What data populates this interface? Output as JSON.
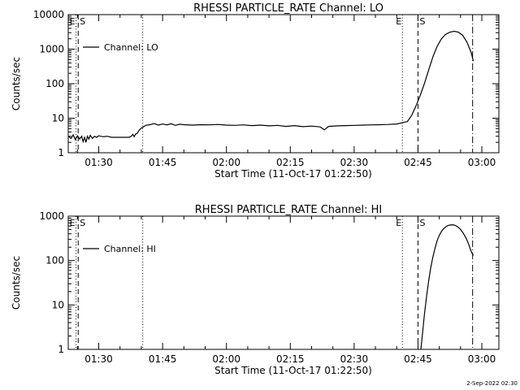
{
  "chart_data": [
    {
      "type": "line",
      "title": "RHESSI PARTICLE_RATE Channel: LO",
      "xlabel": "Start Time (11-Oct-17 01:22:50)",
      "ylabel": "Counts/sec",
      "xlim": [
        "01:22:50",
        "03:04:00"
      ],
      "ylim": [
        1,
        10000
      ],
      "yscale": "log",
      "x_ticks": [
        "01:30",
        "01:45",
        "02:00",
        "02:15",
        "02:30",
        "02:45",
        "03:00"
      ],
      "y_ticks": [
        "1",
        "10",
        "100",
        "1000",
        "10000"
      ],
      "legend": {
        "placement": "top-left",
        "entries": [
          "Channel: LO"
        ]
      },
      "markers": [
        {
          "label": "E",
          "time": "01:24:40",
          "style": "dotted"
        },
        {
          "label": "S",
          "time": "01:25:10",
          "style": "dashed"
        },
        {
          "label": "",
          "time": "01:40:20",
          "style": "dotted"
        },
        {
          "label": "E",
          "time": "02:41:20",
          "style": "dotted"
        },
        {
          "label": "S",
          "time": "02:45:00",
          "style": "dashed"
        },
        {
          "label": "",
          "time": "02:57:50",
          "style": "dashdot"
        }
      ],
      "series": [
        {
          "name": "Channel: LO",
          "points": [
            [
              "01:22:50",
              3
            ],
            [
              "01:23:30",
              2.6
            ],
            [
              "01:24:00",
              3.3
            ],
            [
              "01:24:30",
              2.4
            ],
            [
              "01:25:00",
              3.1
            ],
            [
              "01:25:30",
              2.5
            ],
            [
              "01:26:00",
              3.0
            ],
            [
              "01:26:20",
              2.1
            ],
            [
              "01:26:40",
              2.8
            ],
            [
              "01:27:00",
              2.0
            ],
            [
              "01:27:20",
              3.0
            ],
            [
              "01:27:40",
              2.5
            ],
            [
              "01:28:00",
              3.2
            ],
            [
              "01:28:30",
              2.6
            ],
            [
              "01:29:00",
              3.0
            ],
            [
              "01:29:30",
              2.8
            ],
            [
              "01:30:00",
              3.1
            ],
            [
              "01:31:00",
              2.9
            ],
            [
              "01:32:00",
              3.0
            ],
            [
              "01:33:00",
              2.8
            ],
            [
              "01:34:00",
              2.8
            ],
            [
              "01:35:00",
              2.8
            ],
            [
              "01:36:00",
              2.8
            ],
            [
              "01:37:00",
              2.8
            ],
            [
              "01:37:30",
              2.9
            ],
            [
              "01:38:00",
              3.4
            ],
            [
              "01:38:20",
              2.9
            ],
            [
              "01:38:40",
              3.5
            ],
            [
              "01:39:00",
              3.6
            ],
            [
              "01:39:30",
              4.5
            ],
            [
              "01:40:00",
              5.2
            ],
            [
              "01:40:30",
              5.6
            ],
            [
              "01:41:00",
              6.2
            ],
            [
              "01:42:00",
              6.5
            ],
            [
              "01:43:00",
              7.0
            ],
            [
              "01:44:00",
              6.3
            ],
            [
              "01:45:00",
              6.8
            ],
            [
              "01:46:00",
              6.4
            ],
            [
              "01:47:00",
              6.9
            ],
            [
              "01:48:00",
              6.2
            ],
            [
              "01:49:00",
              6.7
            ],
            [
              "01:50:00",
              6.5
            ],
            [
              "01:52:00",
              6.3
            ],
            [
              "01:54:00",
              6.5
            ],
            [
              "01:56:00",
              6.4
            ],
            [
              "01:58:00",
              6.6
            ],
            [
              "02:00:00",
              6.3
            ],
            [
              "02:02:00",
              6.2
            ],
            [
              "02:04:00",
              6.4
            ],
            [
              "02:06:00",
              6.1
            ],
            [
              "02:08:00",
              6.3
            ],
            [
              "02:10:00",
              6.0
            ],
            [
              "02:12:00",
              6.2
            ],
            [
              "02:14:00",
              5.8
            ],
            [
              "02:16:00",
              6.1
            ],
            [
              "02:18:00",
              5.7
            ],
            [
              "02:20:00",
              5.9
            ],
            [
              "02:22:00",
              5.6
            ],
            [
              "02:23:00",
              4.6
            ],
            [
              "02:24:00",
              5.8
            ],
            [
              "02:26:00",
              6.0
            ],
            [
              "02:28:00",
              6.1
            ],
            [
              "02:30:00",
              6.2
            ],
            [
              "02:32:00",
              6.3
            ],
            [
              "02:34:00",
              6.4
            ],
            [
              "02:36:00",
              6.5
            ],
            [
              "02:38:00",
              6.6
            ],
            [
              "02:40:00",
              6.8
            ],
            [
              "02:41:30",
              7.5
            ],
            [
              "02:42:30",
              8.0
            ],
            [
              "02:43:30",
              12
            ],
            [
              "02:44:30",
              22
            ],
            [
              "02:45:30",
              45
            ],
            [
              "02:46:30",
              100
            ],
            [
              "02:47:30",
              250
            ],
            [
              "02:48:30",
              600
            ],
            [
              "02:49:30",
              1200
            ],
            [
              "02:50:30",
              2000
            ],
            [
              "02:51:30",
              2700
            ],
            [
              "02:52:30",
              3100
            ],
            [
              "02:53:30",
              3300
            ],
            [
              "02:54:30",
              3100
            ],
            [
              "02:55:30",
              2500
            ],
            [
              "02:56:30",
              1600
            ],
            [
              "02:57:30",
              800
            ],
            [
              "02:58:00",
              450
            ]
          ]
        }
      ]
    },
    {
      "type": "line",
      "title": "RHESSI PARTICLE_RATE Channel: HI",
      "xlabel": "Start Time (11-Oct-17 01:22:50)",
      "ylabel": "Counts/sec",
      "xlim": [
        "01:22:50",
        "03:04:00"
      ],
      "ylim": [
        1,
        1000
      ],
      "yscale": "log",
      "x_ticks": [
        "01:30",
        "01:45",
        "02:00",
        "02:15",
        "02:30",
        "02:45",
        "03:00"
      ],
      "y_ticks": [
        "1",
        "10",
        "100",
        "1000"
      ],
      "legend": {
        "placement": "top-left",
        "entries": [
          "Channel: HI"
        ]
      },
      "markers": [
        {
          "label": "E",
          "time": "01:24:40",
          "style": "dotted"
        },
        {
          "label": "S",
          "time": "01:25:10",
          "style": "dashed"
        },
        {
          "label": "",
          "time": "01:40:20",
          "style": "dotted"
        },
        {
          "label": "E",
          "time": "02:41:20",
          "style": "dotted"
        },
        {
          "label": "S",
          "time": "02:45:00",
          "style": "dashed"
        },
        {
          "label": "",
          "time": "02:57:50",
          "style": "dashdot"
        }
      ],
      "series": [
        {
          "name": "Channel: HI",
          "points": [
            [
              "02:45:40",
              1
            ],
            [
              "02:46:00",
              2
            ],
            [
              "02:46:30",
              6
            ],
            [
              "02:47:00",
              15
            ],
            [
              "02:47:30",
              35
            ],
            [
              "02:48:00",
              70
            ],
            [
              "02:48:30",
              120
            ],
            [
              "02:49:00",
              190
            ],
            [
              "02:49:30",
              280
            ],
            [
              "02:50:00",
              370
            ],
            [
              "02:50:30",
              450
            ],
            [
              "02:51:00",
              520
            ],
            [
              "02:51:30",
              570
            ],
            [
              "02:52:00",
              610
            ],
            [
              "02:52:30",
              630
            ],
            [
              "02:53:00",
              640
            ],
            [
              "02:53:30",
              630
            ],
            [
              "02:54:00",
              600
            ],
            [
              "02:54:30",
              560
            ],
            [
              "02:55:00",
              500
            ],
            [
              "02:55:30",
              430
            ],
            [
              "02:56:00",
              360
            ],
            [
              "02:56:30",
              290
            ],
            [
              "02:57:00",
              220
            ],
            [
              "02:57:30",
              160
            ],
            [
              "02:58:00",
              130
            ]
          ]
        }
      ]
    }
  ],
  "footer": {
    "timestamp": "2-Sep-2022 02:30"
  }
}
